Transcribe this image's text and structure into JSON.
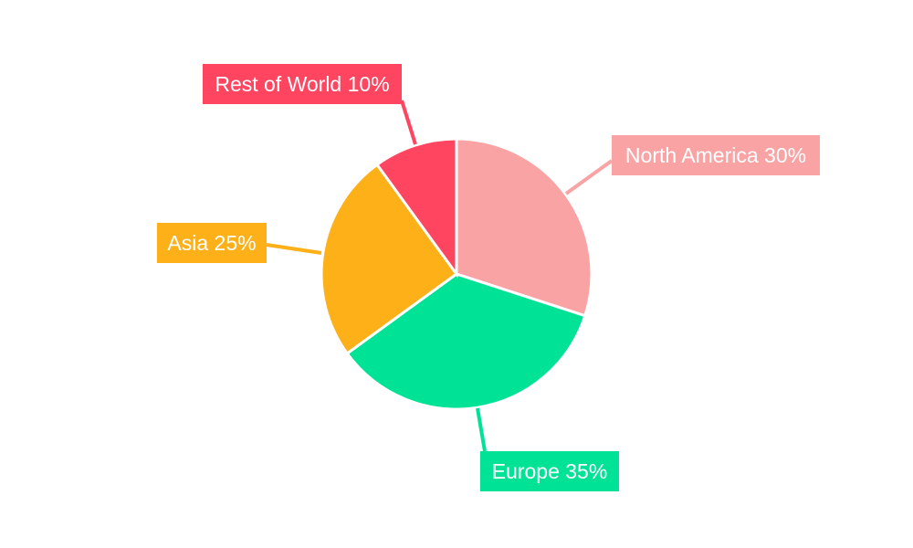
{
  "chart_data": {
    "type": "pie",
    "title": "",
    "start_angle": "top, clockwise",
    "legend": "none (callout labels)",
    "slices": [
      {
        "label": "North America",
        "value": 30,
        "display": "North America 30%",
        "color": "#f9a3a4"
      },
      {
        "label": "Europe",
        "value": 35,
        "display": "Europe 35%",
        "color": "#00e396"
      },
      {
        "label": "Asia",
        "value": 25,
        "display": "Asia 25%",
        "color": "#feb019"
      },
      {
        "label": "Rest of World",
        "value": 10,
        "display": "Rest of World 10%",
        "color": "#ff4560"
      }
    ]
  }
}
